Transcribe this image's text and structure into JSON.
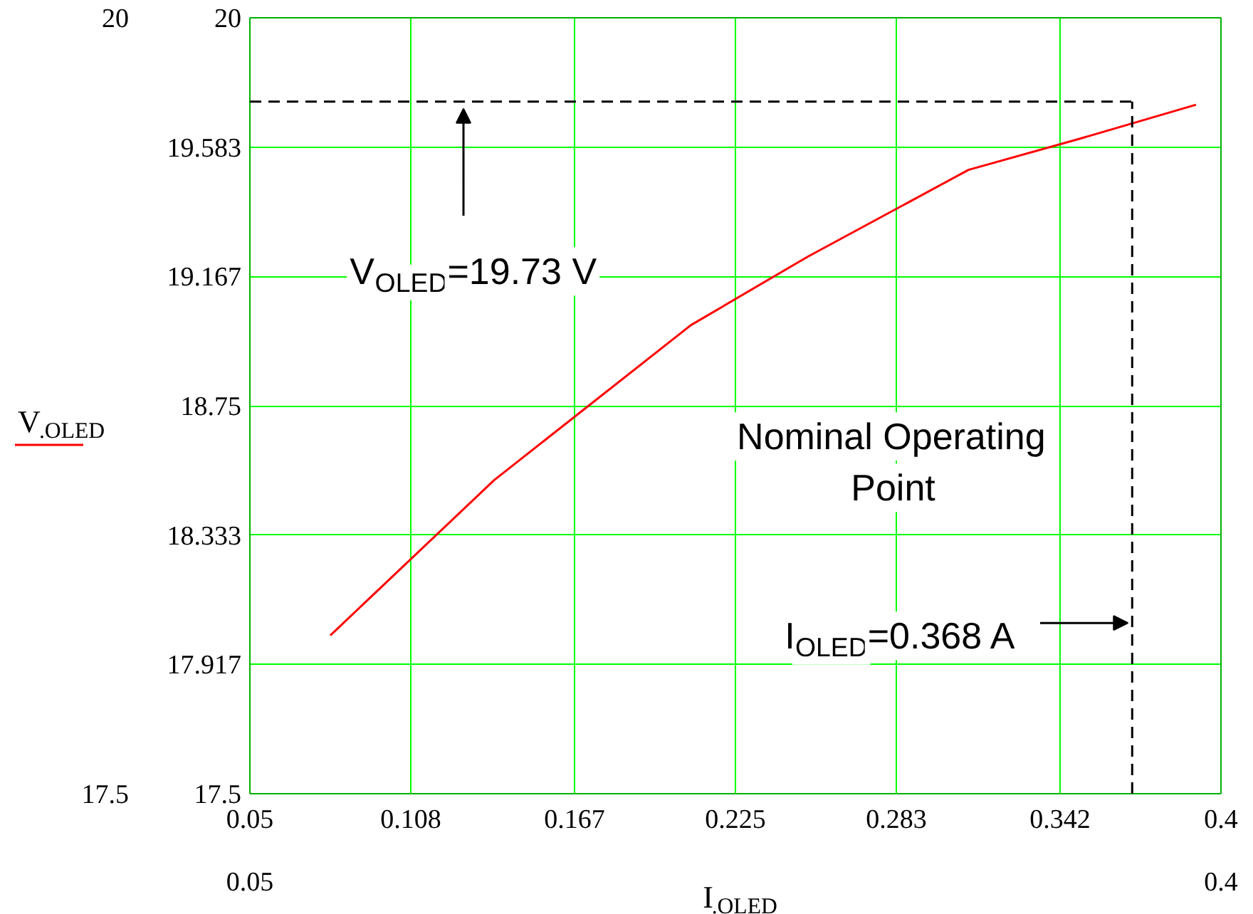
{
  "chart_data": {
    "type": "line",
    "xlabel": "I$_{.OLED}$",
    "x": [
      0.079,
      0.138,
      0.209,
      0.251,
      0.309,
      0.349,
      0.391
    ],
    "ylabel": "V$_{.OLED}$",
    "series": [
      {
        "color": "#ff0000",
        "values": [
          18.01,
          18.51,
          19.01,
          19.23,
          19.51,
          19.61,
          19.72
        ]
      }
    ],
    "xlim": [
      0.05,
      0.4
    ],
    "ylim": [
      17.5,
      20
    ],
    "xticks": [
      0.05,
      0.108,
      0.167,
      0.225,
      0.283,
      0.342,
      0.4
    ],
    "yticks": [
      17.5,
      20
    ],
    "x2lim": [
      0.05,
      0.4
    ],
    "x2ticks": [
      0.05,
      0.4
    ],
    "y2lim": [
      17.5,
      20
    ],
    "y2ticks": [
      17.5,
      17.917,
      18.333,
      18.75,
      19.167,
      19.583,
      20
    ],
    "grid": true,
    "marker": "none",
    "line_style": "solid",
    "ref_lines": [
      {
        "axis": "y",
        "value": 19.73,
        "color": "#000000",
        "line_style": "dashed"
      },
      {
        "axis": "x",
        "value": 0.368,
        "color": "#000000",
        "line_style": "dashed"
      }
    ],
    "annotations": [
      "V$_{OLED}$=19.73 V",
      "Nominal Operating Point",
      {
        "text": "I$_{OLED}$=0.368 A",
        "x": 0.368,
        "y": 18.05
      }
    ]
  }
}
